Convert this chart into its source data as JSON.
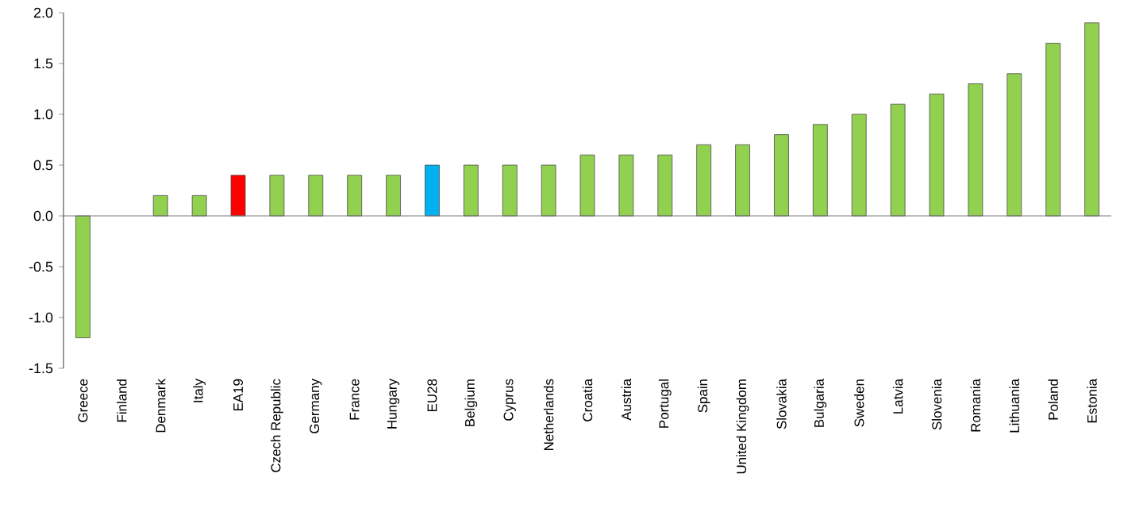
{
  "chart_data": {
    "type": "bar",
    "categories": [
      "Greece",
      "Finland",
      "Denmark",
      "Italy",
      "EA19",
      "Czech Republic",
      "Germany",
      "France",
      "Hungary",
      "EU28",
      "Belgium",
      "Cyprus",
      "Netherlands",
      "Croatia",
      "Austria",
      "Portugal",
      "Spain",
      "United Kingdom",
      "Slovakia",
      "Bulgaria",
      "Sweden",
      "Latvia",
      "Slovenia",
      "Romania",
      "Lithuania",
      "Poland",
      "Estonia"
    ],
    "values": [
      -1.2,
      0,
      0.2,
      0.2,
      0.4,
      0.4,
      0.4,
      0.4,
      0.4,
      0.5,
      0.5,
      0.5,
      0.5,
      0.6,
      0.6,
      0.6,
      0.7,
      0.7,
      0.8,
      0.9,
      1.0,
      1.1,
      1.2,
      1.3,
      1.4,
      1.7,
      1.9
    ],
    "colors": [
      "#92d050",
      "#92d050",
      "#92d050",
      "#92d050",
      "#ff0000",
      "#92d050",
      "#92d050",
      "#92d050",
      "#92d050",
      "#00b0f0",
      "#92d050",
      "#92d050",
      "#92d050",
      "#92d050",
      "#92d050",
      "#92d050",
      "#92d050",
      "#92d050",
      "#92d050",
      "#92d050",
      "#92d050",
      "#92d050",
      "#92d050",
      "#92d050",
      "#92d050",
      "#92d050",
      "#92d050"
    ],
    "ylim": [
      -1.5,
      2.0
    ],
    "yticks": [
      {
        "value": -1.5,
        "label": "-1.5"
      },
      {
        "value": -1.0,
        "label": "-1.0"
      },
      {
        "value": -0.5,
        "label": "-0.5"
      },
      {
        "value": 0,
        "label": "0.0"
      },
      {
        "value": 0.5,
        "label": "0.5"
      },
      {
        "value": 1.0,
        "label": "1.0"
      },
      {
        "value": 1.5,
        "label": "1.5"
      },
      {
        "value": 2.0,
        "label": "2.0"
      }
    ],
    "ref_lines": [
      {
        "axis": "y",
        "value": 0,
        "color": "#7f7f7f"
      }
    ]
  }
}
